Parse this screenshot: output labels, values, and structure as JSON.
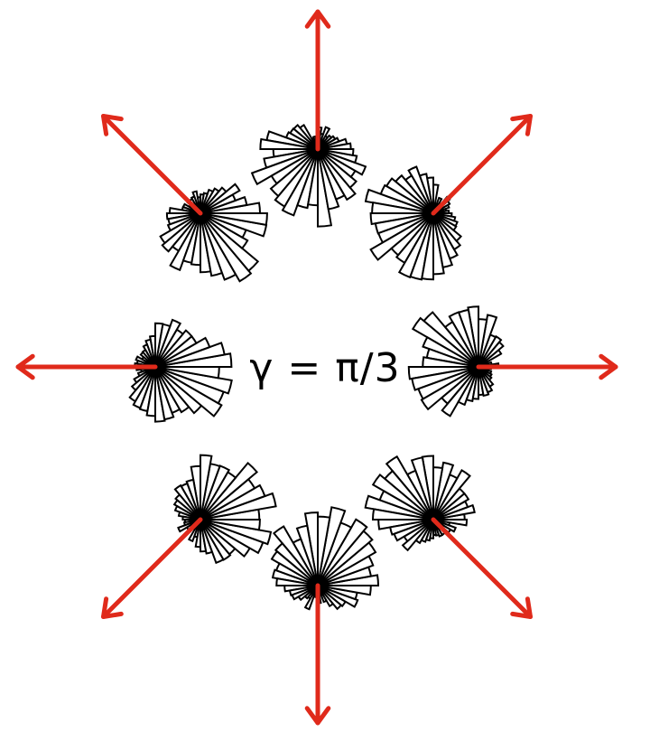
{
  "label": "γ = π/3",
  "colors": {
    "arrow": "#e02a1b",
    "petal_fill": "#ffffff",
    "petal_stroke": "#000000"
  },
  "bins_per_rose": 36,
  "roses": [
    {
      "name": "top",
      "arrow_direction_deg": 90
    },
    {
      "name": "top-right",
      "arrow_direction_deg": 45
    },
    {
      "name": "right",
      "arrow_direction_deg": 0
    },
    {
      "name": "bottom-right",
      "arrow_direction_deg": -45
    },
    {
      "name": "bottom",
      "arrow_direction_deg": -90
    },
    {
      "name": "bottom-left",
      "arrow_direction_deg": -135
    },
    {
      "name": "left",
      "arrow_direction_deg": 180
    },
    {
      "name": "top-left",
      "arrow_direction_deg": 135
    }
  ]
}
